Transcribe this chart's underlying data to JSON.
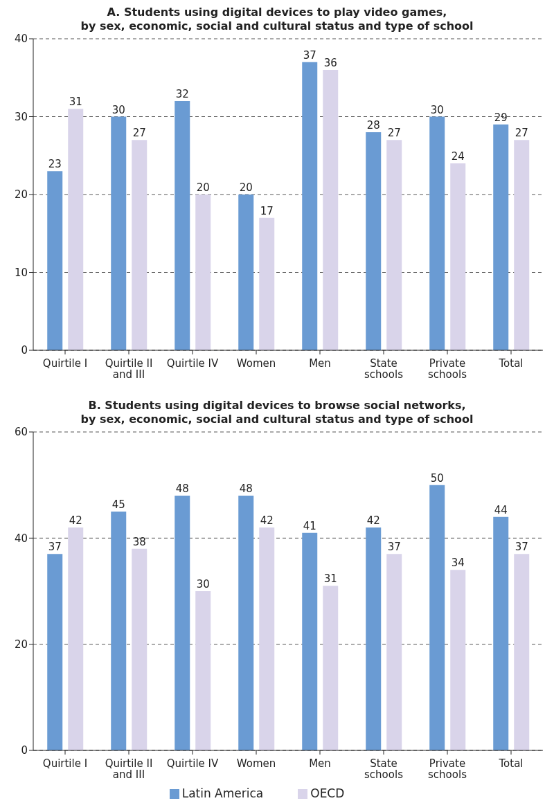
{
  "chart_data": [
    {
      "type": "bar",
      "title": "A. Students using digital devices to play video games,\nby sex, economic, social and cultural status and type of school",
      "categories": [
        "Quirtile I",
        "Quirtile II\nand III",
        "Quirtile IV",
        "Women",
        "Men",
        "State\nschools",
        "Private\nschools",
        "Total"
      ],
      "series": [
        {
          "color": "#6a9bd3",
          "values": [
            23,
            30,
            32,
            20,
            37,
            28,
            30,
            29
          ]
        },
        {
          "color": "#d9d4ea",
          "values": [
            31,
            27,
            20,
            17,
            36,
            27,
            24,
            27
          ]
        }
      ],
      "ylim": [
        0,
        40
      ],
      "yticks": [
        0,
        10,
        20,
        30,
        40
      ],
      "grid": "y",
      "data_labels": true,
      "legend": false
    },
    {
      "type": "bar",
      "title": "B. Students using digital devices to browse social networks,\nby sex, economic, social and cultural status and type of school",
      "categories": [
        "Quirtile I",
        "Quirtile II\nand III",
        "Quirtile IV",
        "Women",
        "Men",
        "State\nschools",
        "Private\nschools",
        "Total"
      ],
      "series": [
        {
          "name": "Latin America",
          "color": "#6a9bd3",
          "values": [
            37,
            45,
            48,
            48,
            41,
            42,
            50,
            44
          ]
        },
        {
          "name": "OECD",
          "color": "#d9d4ea",
          "values": [
            42,
            38,
            30,
            42,
            31,
            37,
            34,
            37
          ]
        }
      ],
      "ylim": [
        0,
        60
      ],
      "yticks": [
        0,
        20,
        40,
        60
      ],
      "grid": "y",
      "data_labels": true,
      "legend": "bottom"
    }
  ]
}
